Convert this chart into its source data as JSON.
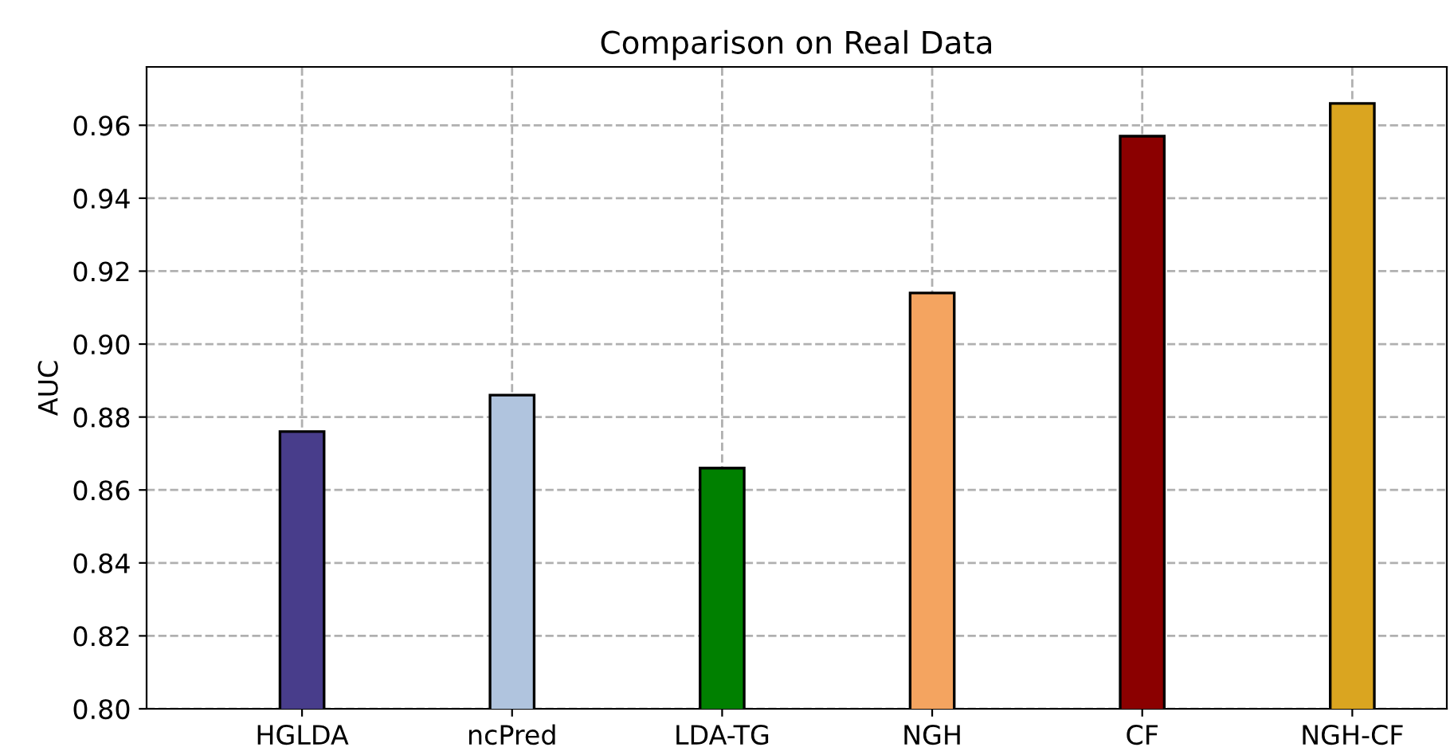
{
  "chart_data": {
    "type": "bar",
    "title": "Comparison on Real Data",
    "ylabel": "AUC",
    "categories": [
      "HGLDA",
      "ncPred",
      "LDA-TG",
      "NGH",
      "CF",
      "NGH-CF"
    ],
    "values": [
      0.876,
      0.886,
      0.866,
      0.914,
      0.957,
      0.966
    ],
    "colors": [
      "#483d8b",
      "#b0c4de",
      "#008000",
      "#f4a460",
      "#8b0000",
      "#daa520"
    ],
    "ylim": [
      0.8,
      0.976
    ],
    "yticks": [
      {
        "value": 0.8,
        "label": "0.80"
      },
      0.82,
      0.84,
      0.86,
      0.88,
      {
        "value": 0.9,
        "label": "0.90"
      },
      0.92,
      0.94,
      0.96
    ],
    "grid": true,
    "line_style": "dashed"
  }
}
